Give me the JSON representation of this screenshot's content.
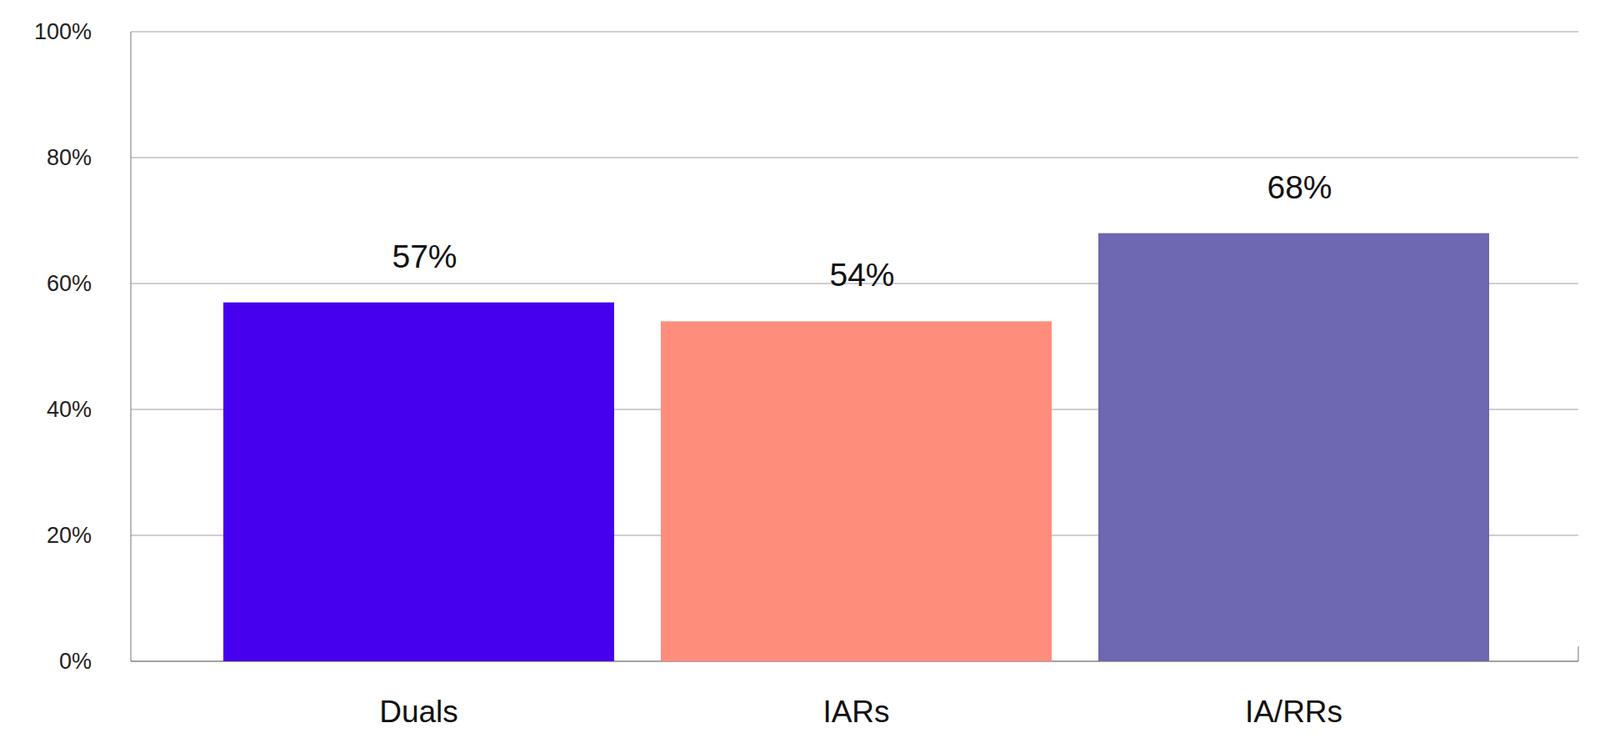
{
  "chart_data": {
    "type": "bar",
    "categories": [
      "Duals",
      "IARs",
      "IA/RRs"
    ],
    "values": [
      57,
      54,
      68
    ],
    "value_labels": [
      "57%",
      "54%",
      "68%"
    ],
    "colors": [
      "#4600ee",
      "#ff8d7c",
      "#6e67b1"
    ],
    "ylim": [
      0,
      100
    ],
    "yticks": [
      {
        "value": 0,
        "label": "0%"
      },
      {
        "value": 20,
        "label": "20%"
      },
      {
        "value": 40,
        "label": "40%"
      },
      {
        "value": 60,
        "label": "60%"
      },
      {
        "value": 80,
        "label": "80%"
      },
      {
        "value": 100,
        "label": "100%"
      }
    ],
    "grid": true,
    "data_labels": true
  }
}
